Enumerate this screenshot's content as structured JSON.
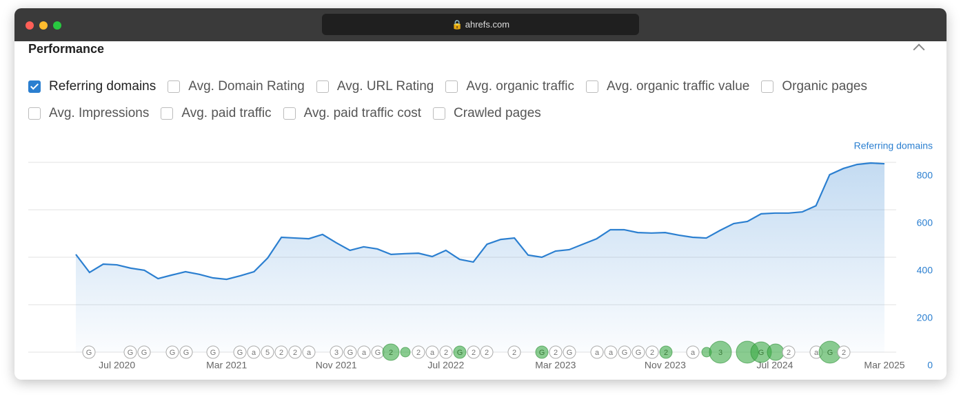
{
  "browser": {
    "url": "ahrefs.com"
  },
  "header": {
    "title": "Performance"
  },
  "checkboxes": [
    {
      "label": "Referring domains",
      "checked": true
    },
    {
      "label": "Avg. Domain Rating",
      "checked": false
    },
    {
      "label": "Avg. URL Rating",
      "checked": false
    },
    {
      "label": "Avg. organic traffic",
      "checked": false
    },
    {
      "label": "Avg. organic traffic value",
      "checked": false
    },
    {
      "label": "Organic pages",
      "checked": false
    },
    {
      "label": "Avg. Impressions",
      "checked": false
    },
    {
      "label": "Avg. paid traffic",
      "checked": false
    },
    {
      "label": "Avg. paid traffic cost",
      "checked": false
    },
    {
      "label": "Crawled pages",
      "checked": false
    }
  ],
  "chart_data": {
    "type": "area",
    "y_axis_label": "Referring domains",
    "categories": [
      null,
      null,
      null,
      "Jul 2020",
      null,
      null,
      null,
      null,
      null,
      null,
      null,
      "Mar 2021",
      null,
      null,
      null,
      null,
      null,
      null,
      null,
      "Nov 2021",
      null,
      null,
      null,
      null,
      null,
      null,
      null,
      "Jul 2022",
      null,
      null,
      null,
      null,
      null,
      null,
      null,
      "Mar 2023",
      null,
      null,
      null,
      null,
      null,
      null,
      null,
      "Nov 2023",
      null,
      null,
      null,
      null,
      null,
      null,
      null,
      "Jul 2024",
      null,
      null,
      null,
      null,
      null,
      null,
      null,
      "Mar 2025"
    ],
    "series": [
      {
        "name": "Referring domains",
        "color": "#2b7fd0",
        "values": [
          412,
          336,
          371,
          368,
          354,
          345,
          310,
          325,
          339,
          328,
          313,
          307,
          322,
          339,
          397,
          484,
          481,
          478,
          496,
          461,
          429,
          444,
          435,
          412,
          415,
          417,
          403,
          429,
          391,
          380,
          455,
          475,
          481,
          409,
          400,
          426,
          432,
          455,
          478,
          516,
          516,
          504,
          502,
          504,
          493,
          484,
          481,
          513,
          542,
          551,
          583,
          586,
          586,
          591,
          617,
          748,
          774,
          791,
          797,
          794
        ]
      }
    ],
    "ylim": [
      0,
      800
    ],
    "yticks": [
      0,
      200,
      400,
      600,
      800
    ],
    "grid": true,
    "events": [
      "G",
      "G",
      "G",
      "G",
      "G",
      "G",
      "G",
      "a",
      "5",
      "2",
      "2",
      "a",
      "3",
      "G",
      "a",
      "G",
      "2",
      "2",
      "a",
      "2",
      "G",
      "2",
      "2",
      "2",
      "G",
      "2",
      "G",
      "a",
      "a",
      "G",
      "G",
      "2",
      "2",
      "a",
      "3",
      "G",
      "2",
      "a",
      "G",
      "2"
    ]
  }
}
